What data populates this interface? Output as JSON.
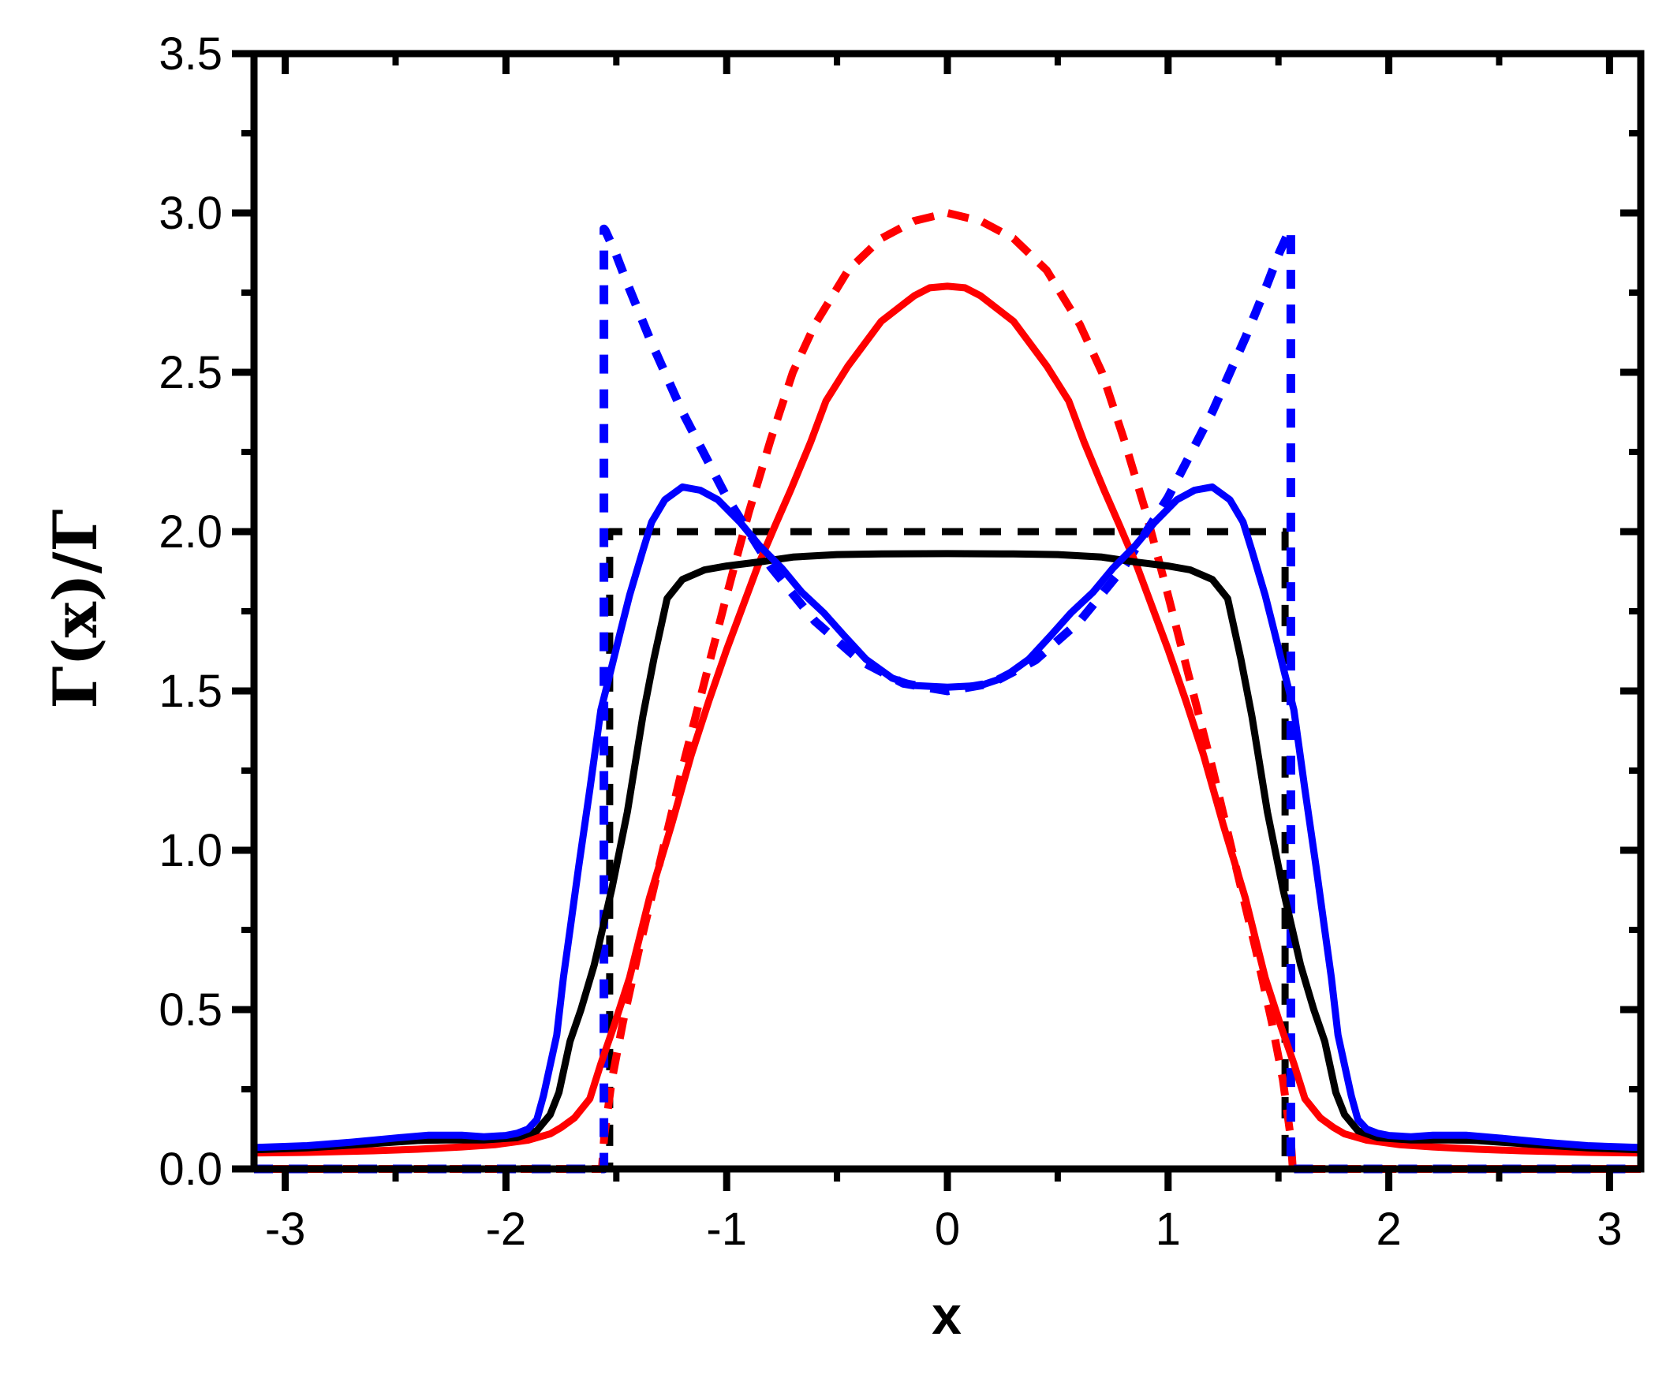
{
  "figure": {
    "title": "",
    "legend": "none"
  },
  "chart_data": {
    "type": "line",
    "title": "",
    "xlabel": "x",
    "ylabel": "Γ(x)/Γ",
    "xlim": [
      -3.1416,
      3.1416
    ],
    "ylim": [
      0,
      3.5
    ],
    "grid": false,
    "legend_position": "none",
    "x_major_ticks": [
      -3,
      -2,
      -1,
      0,
      1,
      2,
      3
    ],
    "x_tick_labels": [
      "-3",
      "-2",
      "-1",
      "0",
      "1",
      "2",
      "3"
    ],
    "x_minor_ticks": [
      -2.5,
      -1.5,
      -0.5,
      0.5,
      1.5,
      2.5
    ],
    "y_major_ticks": [
      0,
      0.5,
      1,
      1.5,
      2,
      2.5,
      3,
      3.5
    ],
    "y_tick_labels": [
      "0.0",
      "0.5",
      "1.0",
      "1.5",
      "2.0",
      "2.5",
      "3.0",
      "3.5"
    ],
    "y_minor_ticks": [
      0.25,
      0.75,
      1.25,
      1.75,
      2.25,
      2.75,
      3.25
    ],
    "colors": {
      "black": "#000000",
      "red": "#ff0000",
      "blue": "#0000ff"
    },
    "series": [
      {
        "name": "black-dashed-ideal-uniform",
        "color": "#000000",
        "style": "dashed",
        "width": 9,
        "dash": [
          27,
          21
        ],
        "symmetric": true,
        "points": [
          [
            0,
            2.0
          ],
          [
            1.53,
            2.0
          ],
          [
            1.53,
            0
          ],
          [
            2.3,
            0
          ],
          [
            3.1416,
            0
          ]
        ]
      },
      {
        "name": "red-dashed-ideal-cosine",
        "color": "#ff0000",
        "style": "dashed",
        "width": 10,
        "dash": [
          27,
          18
        ],
        "dash_offset": 22,
        "symmetric": true,
        "points": [
          [
            0,
            3.0
          ],
          [
            0.15,
            2.975
          ],
          [
            0.3,
            2.92
          ],
          [
            0.45,
            2.82
          ],
          [
            0.6,
            2.65
          ],
          [
            0.7,
            2.5
          ],
          [
            0.8,
            2.29
          ],
          [
            0.9,
            2.06
          ],
          [
            1.0,
            1.8
          ],
          [
            1.1,
            1.53
          ],
          [
            1.2,
            1.26
          ],
          [
            1.3,
            0.97
          ],
          [
            1.4,
            0.68
          ],
          [
            1.47,
            0.46
          ],
          [
            1.52,
            0.28
          ],
          [
            1.555,
            0.1
          ],
          [
            1.565,
            0
          ],
          [
            2.3,
            0
          ],
          [
            3.1416,
            0
          ]
        ]
      },
      {
        "name": "blue-dashed-ideal-double-hump",
        "color": "#0000ff",
        "style": "dashed",
        "width": 11,
        "dash": [
          24,
          20
        ],
        "symmetric": true,
        "points": [
          [
            0,
            1.5
          ],
          [
            0.2,
            1.524
          ],
          [
            0.4,
            1.597
          ],
          [
            0.6,
            1.719
          ],
          [
            0.8,
            1.889
          ],
          [
            1.0,
            2.108
          ],
          [
            1.2,
            2.375
          ],
          [
            1.35,
            2.608
          ],
          [
            1.45,
            2.778
          ],
          [
            1.505,
            2.877
          ],
          [
            1.55,
            2.945
          ],
          [
            1.556,
            2.95
          ],
          [
            1.556,
            0
          ],
          [
            1.75,
            0
          ],
          [
            2.5,
            0
          ],
          [
            3.1416,
            0
          ]
        ]
      },
      {
        "name": "red-solid-smeared-cosine",
        "color": "#ff0000",
        "style": "solid",
        "width": 9,
        "symmetric": true,
        "points": [
          [
            0,
            2.77
          ],
          [
            0.08,
            2.765
          ],
          [
            0.15,
            2.74
          ],
          [
            0.3,
            2.66
          ],
          [
            0.45,
            2.52
          ],
          [
            0.55,
            2.41
          ],
          [
            0.62,
            2.28
          ],
          [
            0.71,
            2.13
          ],
          [
            0.78,
            2.02
          ],
          [
            0.86,
            1.89
          ],
          [
            0.93,
            1.76
          ],
          [
            1.0,
            1.63
          ],
          [
            1.08,
            1.47
          ],
          [
            1.16,
            1.3
          ],
          [
            1.25,
            1.08
          ],
          [
            1.35,
            0.85
          ],
          [
            1.44,
            0.6
          ],
          [
            1.51,
            0.45
          ],
          [
            1.57,
            0.33
          ],
          [
            1.62,
            0.22
          ],
          [
            1.69,
            0.16
          ],
          [
            1.75,
            0.13
          ],
          [
            1.8,
            0.11
          ],
          [
            1.9,
            0.09
          ],
          [
            2.05,
            0.076
          ],
          [
            2.2,
            0.069
          ],
          [
            2.4,
            0.062
          ],
          [
            2.6,
            0.057
          ],
          [
            2.9,
            0.052
          ],
          [
            3.1416,
            0.05
          ]
        ]
      },
      {
        "name": "black-solid-smeared-uniform",
        "color": "#000000",
        "style": "solid",
        "width": 9,
        "symmetric": true,
        "points": [
          [
            0,
            1.931
          ],
          [
            0.3,
            1.93
          ],
          [
            0.5,
            1.928
          ],
          [
            0.7,
            1.92
          ],
          [
            0.85,
            1.905
          ],
          [
            1.0,
            1.892
          ],
          [
            1.1,
            1.88
          ],
          [
            1.2,
            1.85
          ],
          [
            1.27,
            1.79
          ],
          [
            1.33,
            1.6
          ],
          [
            1.38,
            1.42
          ],
          [
            1.45,
            1.12
          ],
          [
            1.52,
            0.88
          ],
          [
            1.6,
            0.64
          ],
          [
            1.66,
            0.5
          ],
          [
            1.71,
            0.4
          ],
          [
            1.76,
            0.24
          ],
          [
            1.8,
            0.17
          ],
          [
            1.86,
            0.12
          ],
          [
            1.95,
            0.098
          ],
          [
            2.1,
            0.091
          ],
          [
            2.27,
            0.091
          ],
          [
            2.4,
            0.089
          ],
          [
            2.55,
            0.082
          ],
          [
            2.7,
            0.075
          ],
          [
            2.9,
            0.066
          ],
          [
            3.1416,
            0.06
          ]
        ]
      },
      {
        "name": "blue-solid-smeared-double-hump",
        "color": "#0000ff",
        "style": "solid",
        "width": 9,
        "symmetric": true,
        "points": [
          [
            0,
            1.512
          ],
          [
            0.15,
            1.517
          ],
          [
            0.25,
            1.54
          ],
          [
            0.37,
            1.6
          ],
          [
            0.47,
            1.675
          ],
          [
            0.56,
            1.745
          ],
          [
            0.66,
            1.81
          ],
          [
            0.75,
            1.885
          ],
          [
            0.85,
            1.955
          ],
          [
            0.94,
            2.03
          ],
          [
            1.04,
            2.1
          ],
          [
            1.12,
            2.13
          ],
          [
            1.2,
            2.14
          ],
          [
            1.28,
            2.1
          ],
          [
            1.34,
            2.03
          ],
          [
            1.38,
            1.94
          ],
          [
            1.44,
            1.8
          ],
          [
            1.48,
            1.69
          ],
          [
            1.53,
            1.55
          ],
          [
            1.57,
            1.44
          ],
          [
            1.62,
            1.19
          ],
          [
            1.67,
            0.95
          ],
          [
            1.71,
            0.75
          ],
          [
            1.74,
            0.6
          ],
          [
            1.77,
            0.42
          ],
          [
            1.83,
            0.23
          ],
          [
            1.86,
            0.155
          ],
          [
            1.9,
            0.125
          ],
          [
            1.95,
            0.112
          ],
          [
            2.0,
            0.105
          ],
          [
            2.1,
            0.101
          ],
          [
            2.2,
            0.106
          ],
          [
            2.35,
            0.106
          ],
          [
            2.5,
            0.097
          ],
          [
            2.7,
            0.084
          ],
          [
            2.9,
            0.073
          ],
          [
            3.1416,
            0.067
          ]
        ]
      }
    ]
  }
}
